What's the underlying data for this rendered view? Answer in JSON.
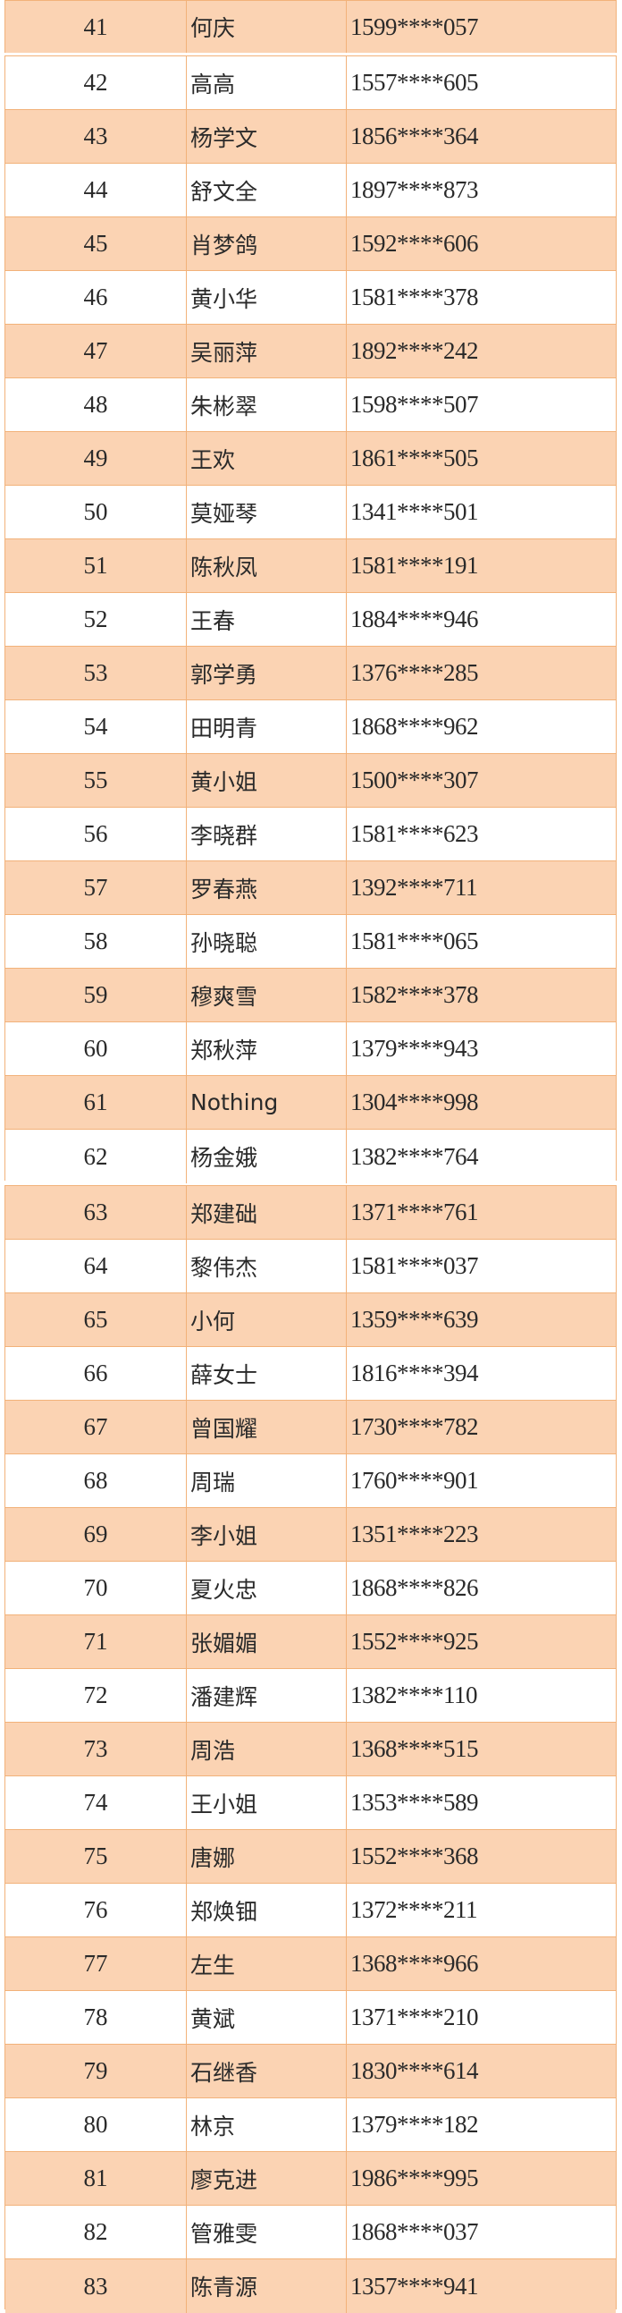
{
  "colors": {
    "peach": "#fbd3b3",
    "border": "#f2b27a"
  },
  "blocks": [
    [
      [
        "41",
        "何庆",
        "1599****057"
      ]
    ],
    [
      [
        "42",
        "高高",
        "1557****605"
      ],
      [
        "43",
        "杨学文",
        "1856****364"
      ],
      [
        "44",
        "舒文全",
        "1897****873"
      ],
      [
        "45",
        "肖梦鸽",
        "1592****606"
      ],
      [
        "46",
        "黄小华",
        "1581****378"
      ],
      [
        "47",
        "吴丽萍",
        "1892****242"
      ],
      [
        "48",
        "朱彬翠",
        "1598****507"
      ],
      [
        "49",
        "王欢",
        "1861****505"
      ],
      [
        "50",
        "莫娅琴",
        "1341****501"
      ],
      [
        "51",
        "陈秋凤",
        "1581****191"
      ],
      [
        "52",
        "王春",
        "1884****946"
      ],
      [
        "53",
        "郭学勇",
        "1376****285"
      ],
      [
        "54",
        "田明青",
        "1868****962"
      ],
      [
        "55",
        "黄小姐",
        "1500****307"
      ],
      [
        "56",
        "李晓群",
        "1581****623"
      ],
      [
        "57",
        "罗春燕",
        "1392****711"
      ],
      [
        "58",
        "孙晓聪",
        "1581****065"
      ],
      [
        "59",
        "穆爽雪",
        "1582****378"
      ],
      [
        "60",
        "郑秋萍",
        "1379****943"
      ],
      [
        "61",
        "Nothing",
        "1304****998"
      ],
      [
        "62",
        "杨金娥",
        "1382****764"
      ]
    ],
    [
      [
        "63",
        "郑建础",
        "1371****761"
      ],
      [
        "64",
        "黎伟杰",
        "1581****037"
      ],
      [
        "65",
        "小何",
        "1359****639"
      ],
      [
        "66",
        "薛女士",
        "1816****394"
      ],
      [
        "67",
        "曾国耀",
        "1730****782"
      ],
      [
        "68",
        "周瑞",
        "1760****901"
      ],
      [
        "69",
        "李小姐",
        "1351****223"
      ],
      [
        "70",
        "夏火忠",
        "1868****826"
      ],
      [
        "71",
        "张媚媚",
        "1552****925"
      ],
      [
        "72",
        "潘建辉",
        "1382****110"
      ],
      [
        "73",
        "周浩",
        "1368****515"
      ],
      [
        "74",
        "王小姐",
        "1353****589"
      ],
      [
        "75",
        "唐娜",
        "1552****368"
      ],
      [
        "76",
        "郑焕钿",
        "1372****211"
      ],
      [
        "77",
        "左生",
        "1368****966"
      ],
      [
        "78",
        "黄斌",
        "1371****210"
      ],
      [
        "79",
        "石继香",
        "1830****614"
      ],
      [
        "80",
        "林京",
        "1379****182"
      ],
      [
        "81",
        "廖克进",
        "1986****995"
      ],
      [
        "82",
        "管雅雯",
        "1868****037"
      ],
      [
        "83",
        "陈青源",
        "1357****941"
      ]
    ]
  ]
}
